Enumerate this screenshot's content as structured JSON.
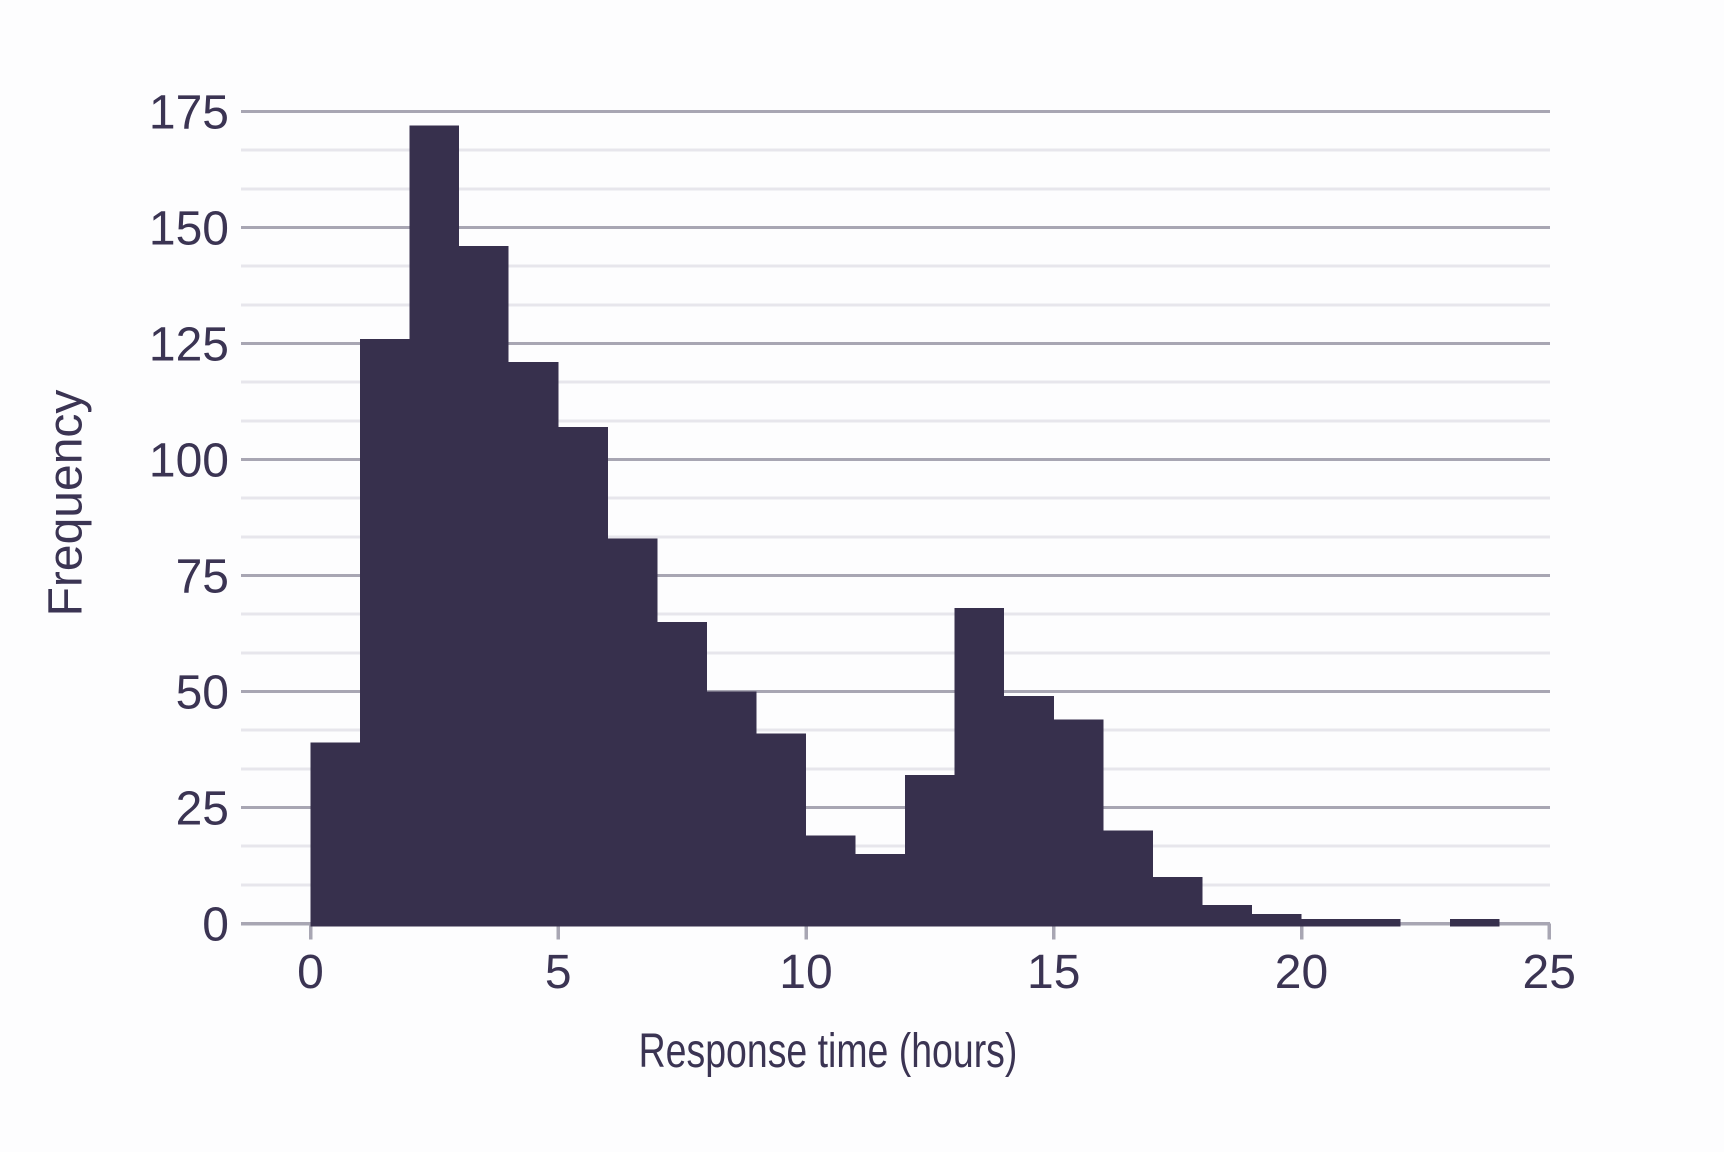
{
  "chart_data": {
    "type": "histogram",
    "title": "",
    "xlabel": "Response time (hours)",
    "ylabel": "Frequency",
    "bin_start": 0,
    "bin_width": 1,
    "categories_note": "24 unit-width bins spanning response times 0-24 hours",
    "frequencies": [
      39,
      126,
      172,
      146,
      121,
      107,
      83,
      65,
      50,
      41,
      19,
      15,
      32,
      68,
      49,
      44,
      20,
      10,
      4,
      2,
      1,
      1,
      0,
      1
    ],
    "x_ticks": [
      0,
      5,
      10,
      15,
      20,
      25
    ],
    "y_ticks": [
      0,
      25,
      50,
      75,
      100,
      125,
      150,
      175
    ],
    "xlim": [
      -1.4,
      25.1
    ],
    "ylim": [
      0,
      181
    ],
    "y_minor_interval": 8.3333,
    "grid": "horizontal only; dark major lines every 25, light minor lines at thirds",
    "legend_position": "none",
    "colors": {
      "bar": "#37304d",
      "major_grid": "#a8a6b3",
      "minor_grid": "#e7e6ec",
      "axis_line": "#a8a6b3",
      "tick_label": "#3b3453",
      "axis_title": "#3b3453",
      "background": "#fdfdfe"
    }
  }
}
